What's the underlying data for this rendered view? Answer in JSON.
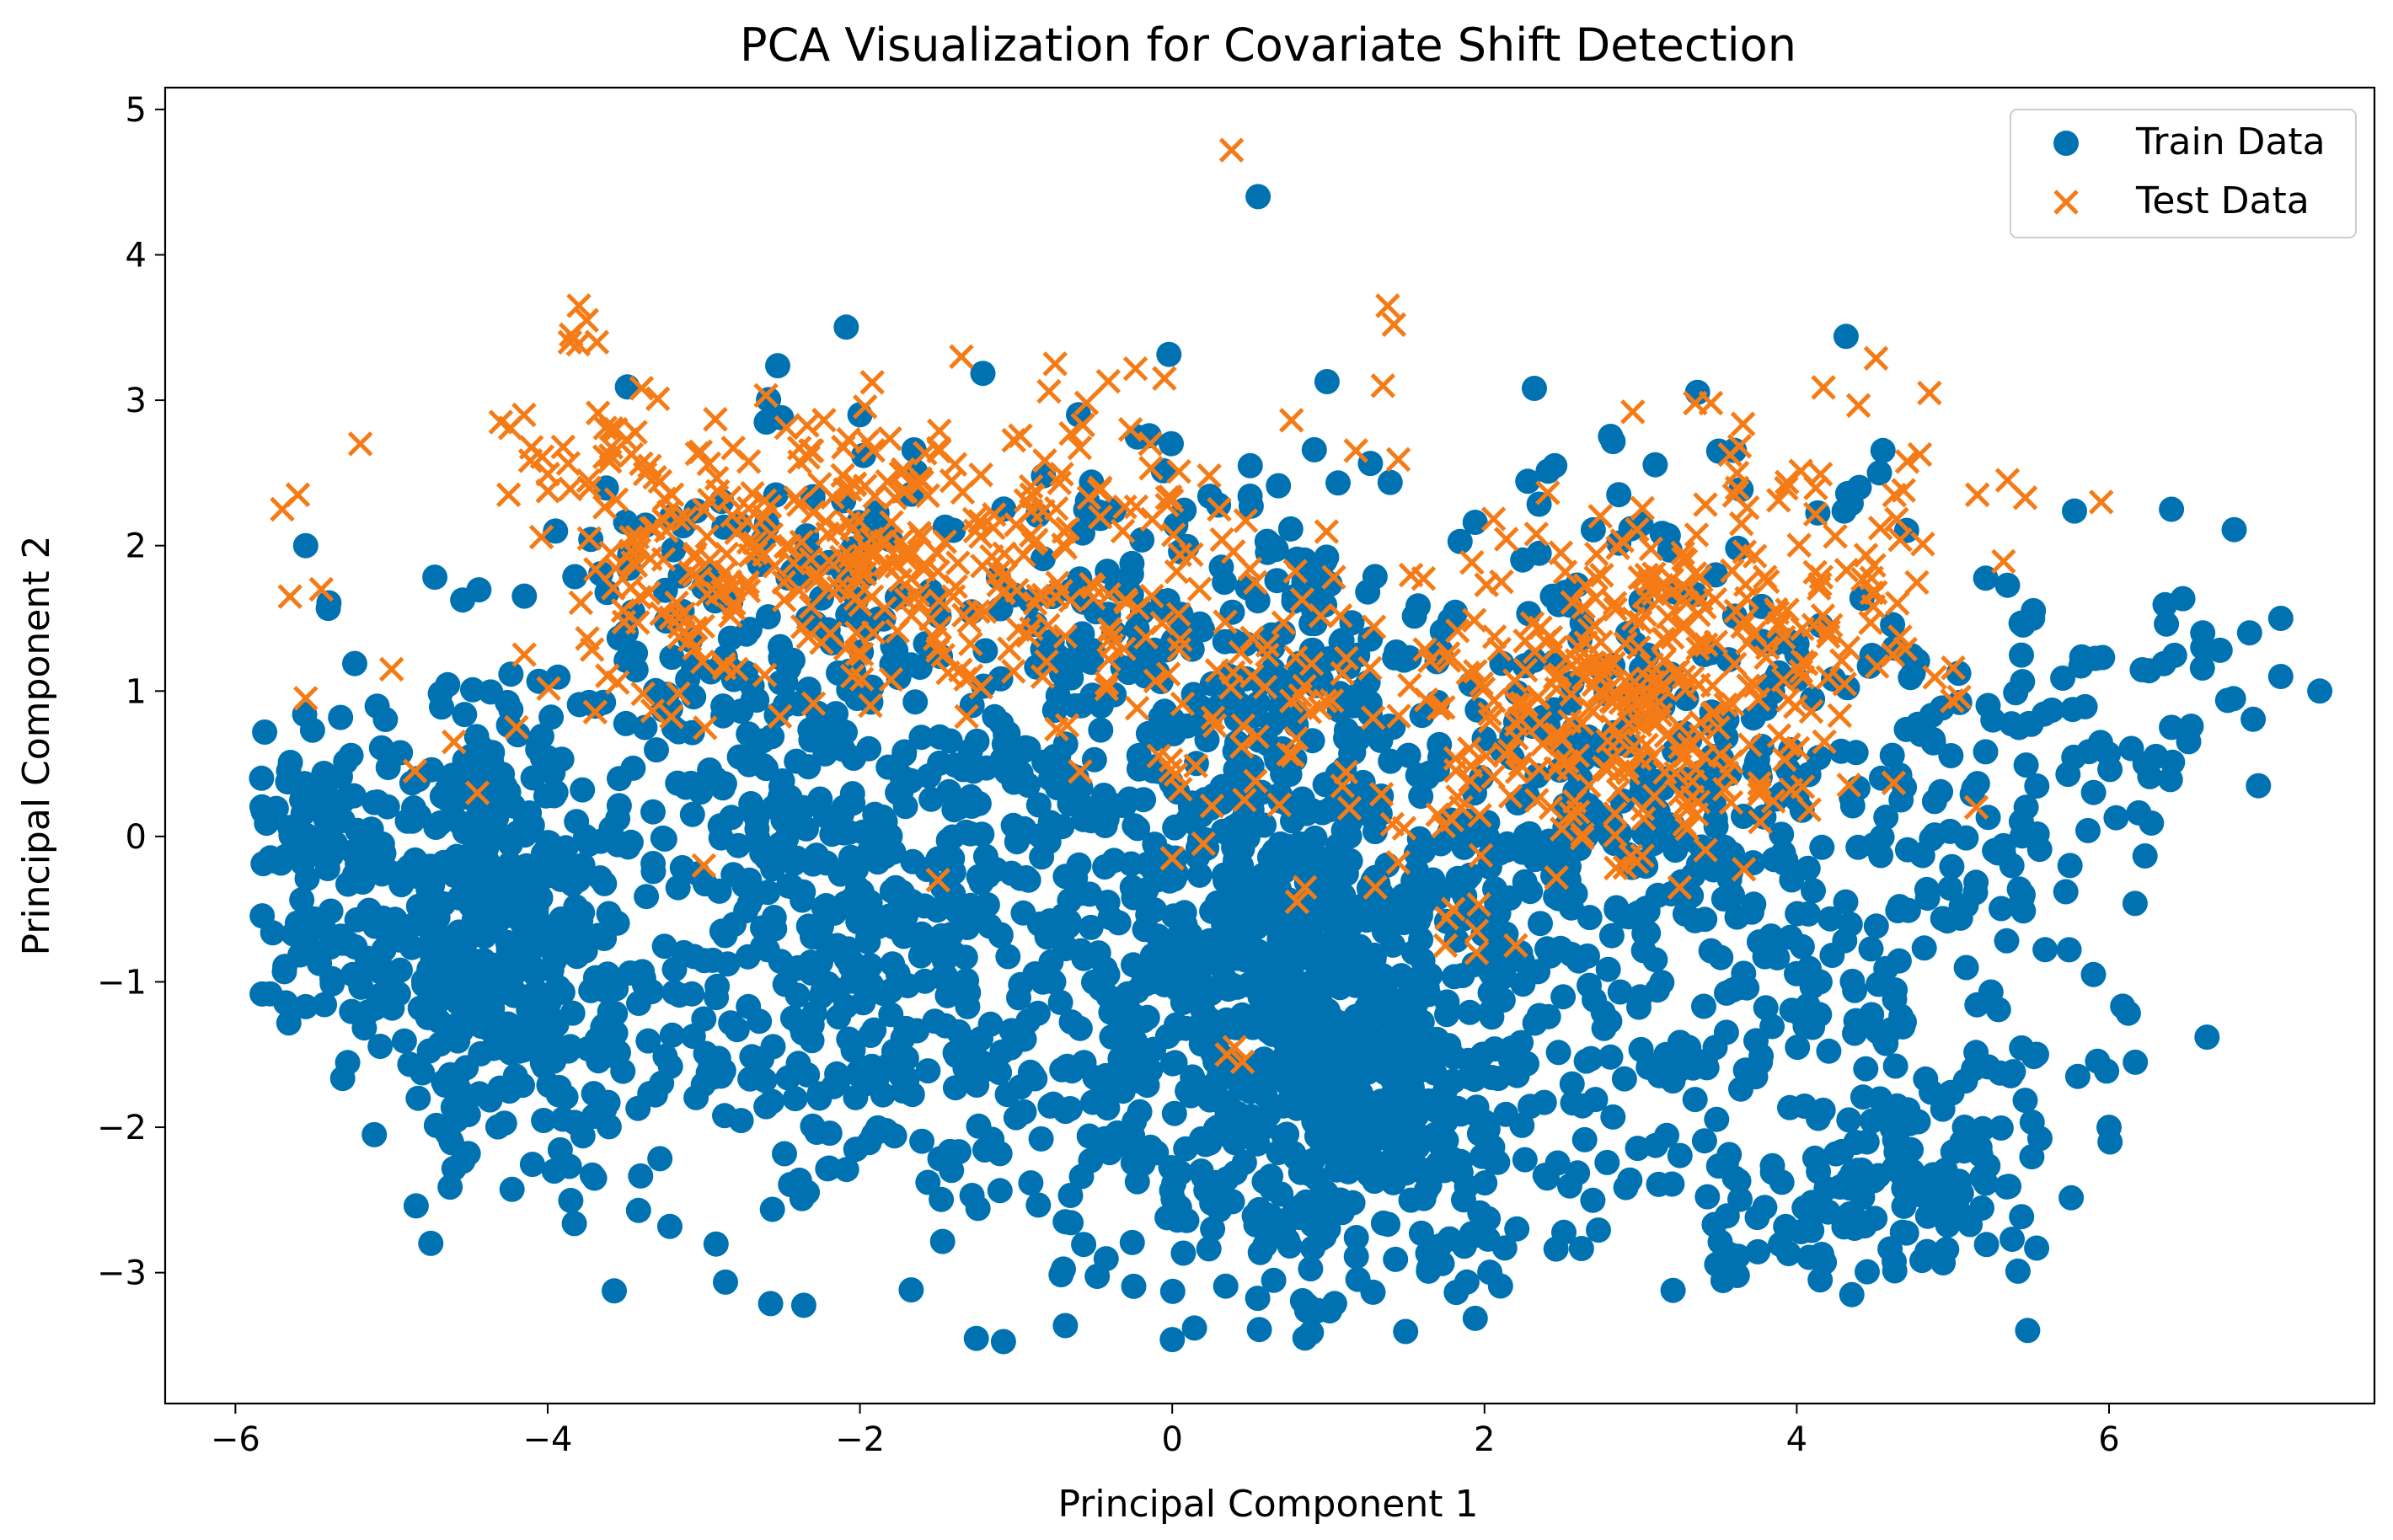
{
  "chart_data": {
    "type": "scatter",
    "title": "PCA Visualization for Covariate Shift Detection",
    "xlabel": "Principal Component 1",
    "ylabel": "Principal Component 2",
    "xlim": [
      -6.45,
      7.7
    ],
    "ylim": [
      -3.9,
      5.15
    ],
    "xticks": [
      -6,
      -4,
      -2,
      0,
      2,
      4,
      6
    ],
    "yticks": [
      -3,
      -2,
      -1,
      0,
      1,
      2,
      3,
      4,
      5
    ],
    "grid": false,
    "legend_position": "top-right",
    "series": [
      {
        "name": "Train Data",
        "marker": "circle",
        "color": "#0072b2",
        "clusters": [
          {
            "cx": -5.4,
            "cy": -0.2,
            "sx": 0.35,
            "sy": 0.7,
            "n": 150
          },
          {
            "cx": -4.4,
            "cy": -0.6,
            "sx": 0.3,
            "sy": 0.85,
            "n": 260
          },
          {
            "cx": -4.0,
            "cy": -1.0,
            "sx": 0.35,
            "sy": 0.7,
            "n": 120
          },
          {
            "cx": -2.4,
            "cy": 0.4,
            "sx": 0.85,
            "sy": 1.1,
            "n": 420
          },
          {
            "cx": -1.6,
            "cy": -1.3,
            "sx": 0.9,
            "sy": 0.8,
            "n": 260
          },
          {
            "cx": 0.8,
            "cy": -1.2,
            "sx": 0.75,
            "sy": 0.9,
            "n": 650
          },
          {
            "cx": 0.1,
            "cy": 0.8,
            "sx": 0.9,
            "sy": 0.9,
            "n": 320
          },
          {
            "cx": 1.6,
            "cy": -2.2,
            "sx": 0.8,
            "sy": 0.55,
            "n": 180
          },
          {
            "cx": 2.8,
            "cy": 0.4,
            "sx": 0.8,
            "sy": 1.1,
            "n": 320
          },
          {
            "cx": 4.4,
            "cy": -0.8,
            "sx": 0.85,
            "sy": 1.2,
            "n": 260
          },
          {
            "cx": 4.5,
            "cy": -2.5,
            "sx": 0.5,
            "sy": 0.3,
            "n": 90
          },
          {
            "cx": 5.6,
            "cy": 0.8,
            "sx": 0.6,
            "sy": 0.6,
            "n": 70
          }
        ],
        "extra_points": [
          [
            0.55,
            4.4
          ],
          [
            6.4,
            2.25
          ],
          [
            7.1,
            1.5
          ],
          [
            7.35,
            1.0
          ],
          [
            7.1,
            1.1
          ],
          [
            6.9,
            1.4
          ],
          [
            6.6,
            1.4
          ],
          [
            6.6,
            1.3
          ],
          [
            6.3,
            0.55
          ],
          [
            6.4,
            0.75
          ],
          [
            0.85,
            -3.45
          ],
          [
            1.0,
            -2.7
          ],
          [
            -3.7,
            -2.35
          ],
          [
            -5.55,
            2.0
          ],
          [
            -3.95,
            2.1
          ],
          [
            -2.6,
            2.85
          ],
          [
            -2.0,
            2.9
          ],
          [
            -0.6,
            2.9
          ],
          [
            0.5,
            2.55
          ],
          [
            2.45,
            2.55
          ],
          [
            4.4,
            2.4
          ],
          [
            5.9,
            -0.95
          ],
          [
            5.8,
            -1.65
          ],
          [
            6.0,
            -2.0
          ],
          [
            4.15,
            -3.05
          ],
          [
            5.75,
            -0.2
          ]
        ]
      },
      {
        "name": "Test Data",
        "marker": "x",
        "color": "#f57b16",
        "clusters": [
          {
            "cx": -2.5,
            "cy": 2.0,
            "sx": 0.6,
            "sy": 0.45,
            "n": 180
          },
          {
            "cx": -1.0,
            "cy": 1.9,
            "sx": 0.7,
            "sy": 0.5,
            "n": 150
          },
          {
            "cx": -3.6,
            "cy": 2.3,
            "sx": 0.3,
            "sy": 0.6,
            "n": 50
          },
          {
            "cx": 0.6,
            "cy": 1.3,
            "sx": 0.7,
            "sy": 0.6,
            "n": 90
          },
          {
            "cx": 2.5,
            "cy": 0.8,
            "sx": 0.6,
            "sy": 0.5,
            "n": 130
          },
          {
            "cx": 3.3,
            "cy": 1.2,
            "sx": 0.55,
            "sy": 0.55,
            "n": 170
          },
          {
            "cx": 4.3,
            "cy": 1.8,
            "sx": 0.5,
            "sy": 0.5,
            "n": 70
          }
        ],
        "extra_points": [
          [
            0.38,
            4.72
          ],
          [
            -3.8,
            3.65
          ],
          [
            -3.75,
            3.55
          ],
          [
            -3.85,
            3.45
          ],
          [
            1.38,
            3.65
          ],
          [
            1.42,
            3.52
          ],
          [
            1.35,
            3.1
          ],
          [
            -1.35,
            3.3
          ],
          [
            -0.75,
            3.25
          ],
          [
            -0.05,
            3.15
          ],
          [
            3.35,
            2.98
          ],
          [
            3.45,
            2.98
          ],
          [
            2.95,
            2.92
          ],
          [
            4.85,
            3.05
          ],
          [
            5.35,
            2.45
          ],
          [
            5.95,
            2.3
          ],
          [
            -5.2,
            2.7
          ],
          [
            -5.7,
            2.25
          ],
          [
            -5.6,
            2.35
          ],
          [
            -5.65,
            1.65
          ],
          [
            -5.45,
            1.7
          ],
          [
            -5.55,
            0.95
          ],
          [
            -4.3,
            2.85
          ],
          [
            -4.25,
            2.35
          ],
          [
            -4.85,
            0.45
          ],
          [
            -4.45,
            0.3
          ],
          [
            -4.6,
            0.65
          ],
          [
            -4.2,
            0.75
          ],
          [
            -4.15,
            1.25
          ],
          [
            -5.0,
            1.15
          ],
          [
            -3.0,
            -0.2
          ],
          [
            -1.5,
            -0.3
          ],
          [
            0.0,
            -0.15
          ],
          [
            0.2,
            -0.05
          ],
          [
            0.85,
            -0.35
          ],
          [
            0.8,
            -0.45
          ],
          [
            1.3,
            -0.35
          ],
          [
            1.8,
            -0.5
          ],
          [
            1.95,
            -0.65
          ],
          [
            1.75,
            -0.75
          ],
          [
            1.95,
            -0.8
          ],
          [
            2.2,
            -0.75
          ],
          [
            3.25,
            -0.35
          ],
          [
            0.4,
            -1.45
          ],
          [
            0.35,
            -1.5
          ],
          [
            0.45,
            -1.55
          ],
          [
            1.85,
            0.2
          ],
          [
            1.7,
            0.15
          ],
          [
            5.15,
            0.2
          ]
        ]
      }
    ]
  }
}
